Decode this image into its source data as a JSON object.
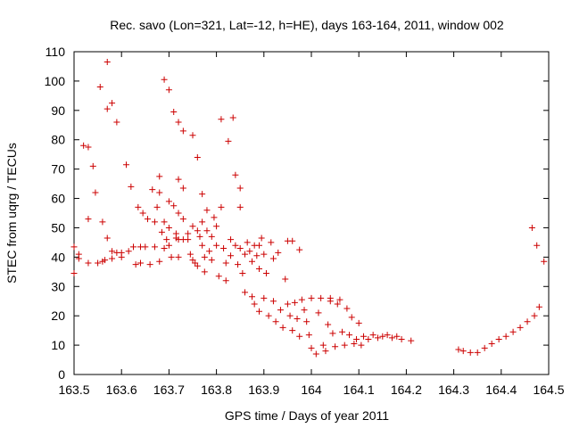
{
  "chart_data": {
    "type": "scatter",
    "title": "Rec. savo (Lon=321, Lat=-12, h=HE), days 163-164, 2011, window 002",
    "xlabel": "GPS time / Days of year 2011",
    "ylabel": "STEC from uqrg / TECUs",
    "xlim": [
      163.5,
      164.5
    ],
    "ylim": [
      0,
      110
    ],
    "x_ticks": [
      "163.5",
      "163.6",
      "163.7",
      "163.8",
      "163.9",
      "164",
      "164.1",
      "164.2",
      "164.3",
      "164.4",
      "164.5"
    ],
    "y_ticks": [
      "0",
      "10",
      "20",
      "30",
      "40",
      "50",
      "60",
      "70",
      "80",
      "90",
      "100",
      "110"
    ],
    "grid": false,
    "marker": "+",
    "color": "#cc0000",
    "series": [
      {
        "values": [
          [
            163.5,
            43.5
          ],
          [
            163.5,
            34.5
          ],
          [
            163.51,
            39.5
          ],
          [
            163.51,
            41
          ],
          [
            163.52,
            78
          ],
          [
            163.53,
            77.5
          ],
          [
            163.53,
            53
          ],
          [
            163.53,
            38
          ],
          [
            163.54,
            71
          ],
          [
            163.545,
            62
          ],
          [
            163.55,
            38
          ],
          [
            163.555,
            98
          ],
          [
            163.56,
            52
          ],
          [
            163.56,
            38.5
          ],
          [
            163.565,
            39
          ],
          [
            163.57,
            106.5
          ],
          [
            163.57,
            90.5
          ],
          [
            163.57,
            46.5
          ],
          [
            163.58,
            92.5
          ],
          [
            163.58,
            42
          ],
          [
            163.58,
            39.5
          ],
          [
            163.59,
            86
          ],
          [
            163.59,
            41.5
          ],
          [
            163.6,
            40
          ],
          [
            163.6,
            41.5
          ],
          [
            163.61,
            71.5
          ],
          [
            163.615,
            42
          ],
          [
            163.62,
            64
          ],
          [
            163.625,
            43.5
          ],
          [
            163.63,
            37.5
          ],
          [
            163.635,
            57
          ],
          [
            163.64,
            43.5
          ],
          [
            163.64,
            38
          ],
          [
            163.645,
            55
          ],
          [
            163.65,
            43.5
          ],
          [
            163.655,
            53
          ],
          [
            163.66,
            37.5
          ],
          [
            163.665,
            63
          ],
          [
            163.67,
            52
          ],
          [
            163.67,
            43.5
          ],
          [
            163.675,
            57
          ],
          [
            163.68,
            67.5
          ],
          [
            163.68,
            62
          ],
          [
            163.68,
            38.5
          ],
          [
            163.685,
            48.5
          ],
          [
            163.69,
            100.5
          ],
          [
            163.69,
            52
          ],
          [
            163.69,
            43
          ],
          [
            163.695,
            46
          ],
          [
            163.7,
            97
          ],
          [
            163.7,
            59
          ],
          [
            163.7,
            50
          ],
          [
            163.7,
            44
          ],
          [
            163.705,
            40
          ],
          [
            163.71,
            89.5
          ],
          [
            163.71,
            57.5
          ],
          [
            163.715,
            48
          ],
          [
            163.715,
            46.5
          ],
          [
            163.72,
            86
          ],
          [
            163.72,
            66.5
          ],
          [
            163.72,
            55
          ],
          [
            163.72,
            46
          ],
          [
            163.72,
            40
          ],
          [
            163.73,
            83
          ],
          [
            163.73,
            63.5
          ],
          [
            163.73,
            53
          ],
          [
            163.73,
            46
          ],
          [
            163.74,
            46
          ],
          [
            163.74,
            48
          ],
          [
            163.745,
            41
          ],
          [
            163.75,
            81.5
          ],
          [
            163.75,
            50.5
          ],
          [
            163.75,
            39
          ],
          [
            163.755,
            38
          ],
          [
            163.76,
            74
          ],
          [
            163.76,
            49
          ],
          [
            163.76,
            37
          ],
          [
            163.765,
            47
          ],
          [
            163.77,
            61.5
          ],
          [
            163.77,
            52
          ],
          [
            163.77,
            44
          ],
          [
            163.775,
            40
          ],
          [
            163.775,
            35
          ],
          [
            163.78,
            56
          ],
          [
            163.78,
            49
          ],
          [
            163.785,
            42
          ],
          [
            163.79,
            47
          ],
          [
            163.79,
            39
          ],
          [
            163.795,
            53.5
          ],
          [
            163.8,
            50.5
          ],
          [
            163.8,
            44
          ],
          [
            163.805,
            33.5
          ],
          [
            163.81,
            87
          ],
          [
            163.81,
            57
          ],
          [
            163.815,
            43
          ],
          [
            163.82,
            38
          ],
          [
            163.82,
            32
          ],
          [
            163.825,
            79.5
          ],
          [
            163.83,
            46
          ],
          [
            163.83,
            40.5
          ],
          [
            163.835,
            87.5
          ],
          [
            163.84,
            68
          ],
          [
            163.84,
            44
          ],
          [
            163.845,
            37.5
          ],
          [
            163.85,
            63.5
          ],
          [
            163.85,
            57
          ],
          [
            163.85,
            43
          ],
          [
            163.855,
            34.5
          ],
          [
            163.86,
            41
          ],
          [
            163.86,
            28
          ],
          [
            163.865,
            45
          ],
          [
            163.87,
            42
          ],
          [
            163.875,
            38.5
          ],
          [
            163.875,
            26.5
          ],
          [
            163.88,
            44
          ],
          [
            163.88,
            24
          ],
          [
            163.885,
            40.5
          ],
          [
            163.89,
            44
          ],
          [
            163.89,
            36
          ],
          [
            163.89,
            21.5
          ],
          [
            163.895,
            46.5
          ],
          [
            163.9,
            41
          ],
          [
            163.9,
            26
          ],
          [
            163.905,
            34.5
          ],
          [
            163.91,
            20
          ],
          [
            163.915,
            45
          ],
          [
            163.92,
            39.5
          ],
          [
            163.92,
            25
          ],
          [
            163.925,
            18
          ],
          [
            163.93,
            41.5
          ],
          [
            163.935,
            22
          ],
          [
            163.94,
            16
          ],
          [
            163.945,
            32.5
          ],
          [
            163.95,
            45.5
          ],
          [
            163.95,
            24
          ],
          [
            163.955,
            20
          ],
          [
            163.96,
            45.5
          ],
          [
            163.96,
            15
          ],
          [
            163.965,
            24.5
          ],
          [
            163.97,
            19
          ],
          [
            163.975,
            42.5
          ],
          [
            163.975,
            13
          ],
          [
            163.98,
            25.5
          ],
          [
            163.985,
            22
          ],
          [
            163.99,
            18
          ],
          [
            163.995,
            13.5
          ],
          [
            164.0,
            26
          ],
          [
            164.0,
            9
          ],
          [
            164.01,
            7
          ],
          [
            164.015,
            21
          ],
          [
            164.02,
            26
          ],
          [
            164.025,
            10
          ],
          [
            164.03,
            8
          ],
          [
            164.035,
            17
          ],
          [
            164.04,
            26
          ],
          [
            164.04,
            25
          ],
          [
            164.045,
            14
          ],
          [
            164.05,
            9.5
          ],
          [
            164.055,
            24
          ],
          [
            164.06,
            25.5
          ],
          [
            164.065,
            14.5
          ],
          [
            164.07,
            10
          ],
          [
            164.075,
            22.5
          ],
          [
            164.08,
            13.5
          ],
          [
            164.085,
            19.5
          ],
          [
            164.09,
            10.5
          ],
          [
            164.095,
            12
          ],
          [
            164.1,
            17.5
          ],
          [
            164.105,
            10
          ],
          [
            164.11,
            13
          ],
          [
            164.12,
            12
          ],
          [
            164.13,
            13.5
          ],
          [
            164.14,
            12.5
          ],
          [
            164.15,
            13
          ],
          [
            164.16,
            13.5
          ],
          [
            164.17,
            12.5
          ],
          [
            164.18,
            13
          ],
          [
            164.19,
            12
          ],
          [
            164.21,
            11.5
          ],
          [
            164.31,
            8.5
          ],
          [
            164.32,
            8
          ],
          [
            164.335,
            7.5
          ],
          [
            164.35,
            7.5
          ],
          [
            164.365,
            9
          ],
          [
            164.38,
            10.5
          ],
          [
            164.395,
            12
          ],
          [
            164.41,
            13
          ],
          [
            164.425,
            14.5
          ],
          [
            164.44,
            16
          ],
          [
            164.455,
            18
          ],
          [
            164.465,
            50
          ],
          [
            164.47,
            20
          ],
          [
            164.475,
            44
          ],
          [
            164.48,
            23
          ],
          [
            164.49,
            38.5
          ]
        ]
      }
    ]
  }
}
